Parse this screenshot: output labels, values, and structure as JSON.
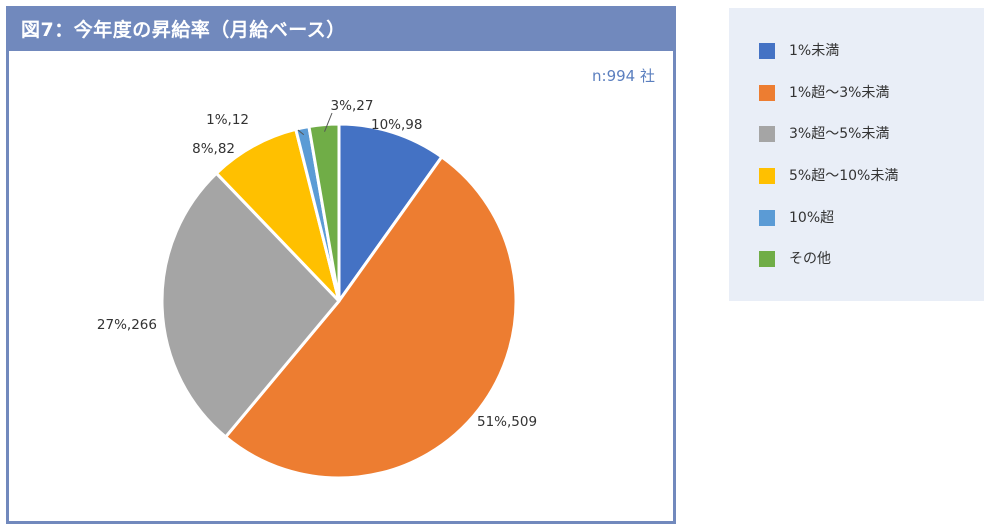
{
  "header": {
    "title": "図7：今年度の昇給率（月給ベース）"
  },
  "note": "n:994 社",
  "chart_data": {
    "type": "pie",
    "title": "図7：今年度の昇給率（月給ベース）",
    "start_angle_deg": 0,
    "direction": "clockwise",
    "slices": [
      {
        "name": "1%未満",
        "count": 98,
        "percent": 10,
        "label": "10%,98",
        "color": "#4472c4"
      },
      {
        "name": "1%超～3%未満",
        "count": 509,
        "percent": 51,
        "label": "51%,509",
        "color": "#ed7d31"
      },
      {
        "name": "3%超～5%未満",
        "count": 266,
        "percent": 27,
        "label": "27%,266",
        "color": "#a5a5a5"
      },
      {
        "name": "5%超～10%未満",
        "count": 82,
        "percent": 8,
        "label": "8%,82",
        "color": "#ffc000"
      },
      {
        "name": "10%超",
        "count": 12,
        "percent": 1,
        "label": "1%,12",
        "color": "#5b9bd5"
      },
      {
        "name": "その他",
        "count": 27,
        "percent": 3,
        "label": "3%,27",
        "color": "#70ad47"
      }
    ],
    "legend_position": "right"
  }
}
